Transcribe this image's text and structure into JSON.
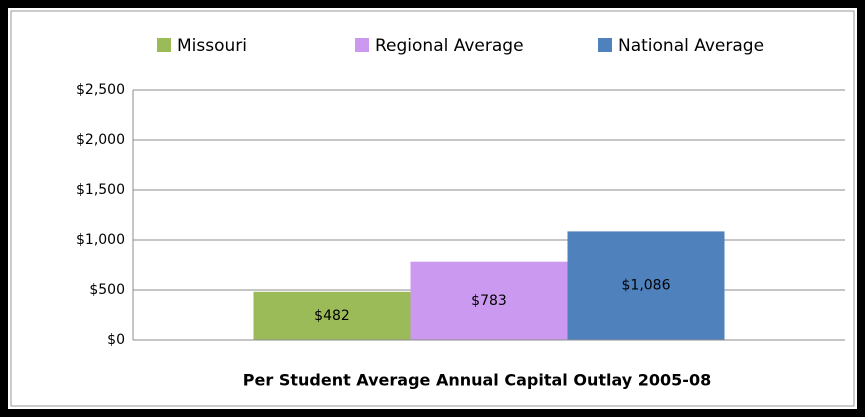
{
  "chart_data": {
    "type": "bar",
    "xlabel": "Per Student Average Annual Capital Outlay 2005-08",
    "categories": [
      null
    ],
    "series": [
      {
        "name": "Missouri",
        "color": "#9bbb59",
        "values": [
          482
        ],
        "value_labels": [
          "$482"
        ]
      },
      {
        "name": "Regional Average",
        "color": "#cc99f0",
        "values": [
          783
        ],
        "value_labels": [
          "$783"
        ]
      },
      {
        "name": "National Average",
        "color": "#4f81bd",
        "values": [
          1086
        ],
        "value_labels": [
          "$1,086"
        ]
      }
    ],
    "ylim": [
      0,
      2500
    ],
    "yticks": [
      {
        "value": 0,
        "label": "$0"
      },
      {
        "value": 500,
        "label": "$500"
      },
      {
        "value": 1000,
        "label": "$1,000"
      },
      {
        "value": 1500,
        "label": "$1,500"
      },
      {
        "value": 2000,
        "label": "$2,000"
      },
      {
        "value": 2500,
        "label": "$2,500"
      }
    ],
    "grid": true,
    "legend": "top"
  }
}
